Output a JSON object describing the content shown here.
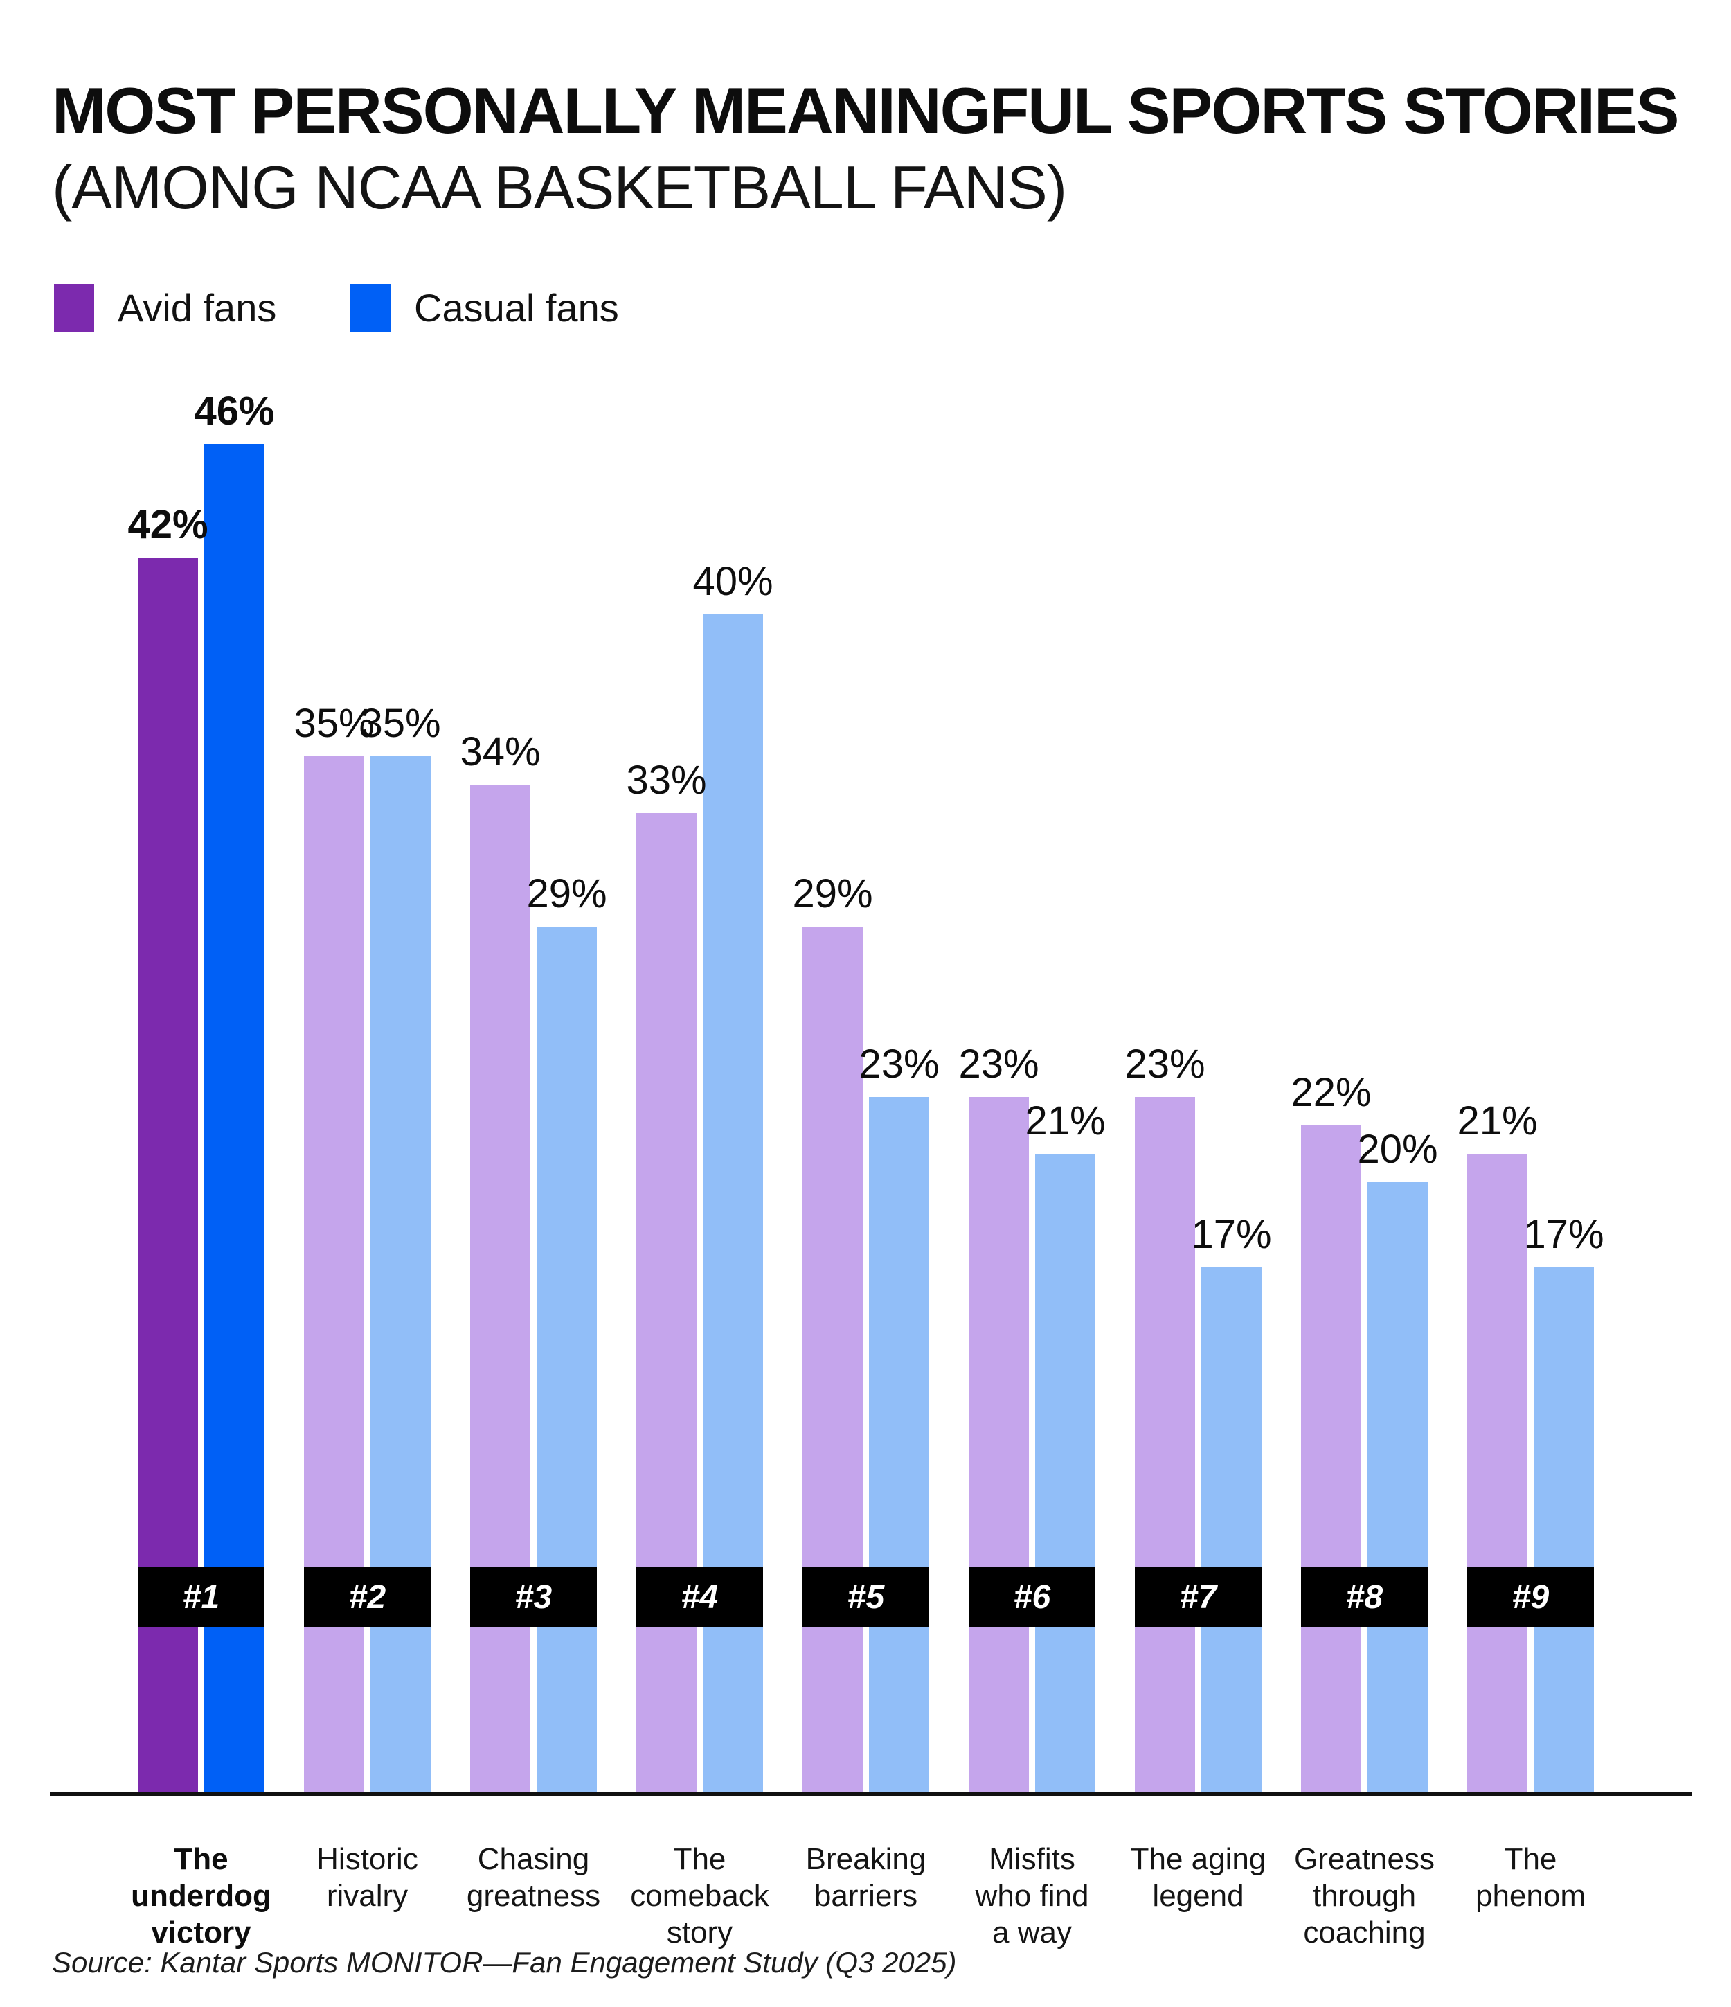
{
  "title": {
    "line1": "MOST PERSONALLY MEANINGFUL SPORTS STORIES",
    "line2": "(AMONG NCAA BASKETBALL FANS)"
  },
  "legend": {
    "items": [
      {
        "label": "Avid fans",
        "color": "#7C2AAE"
      },
      {
        "label": "Casual fans",
        "color": "#0060F6"
      }
    ]
  },
  "colors": {
    "avid": "#7C2AAE",
    "casual": "#0060F6",
    "avid_muted": "#C5A5EC",
    "casual_muted": "#91BEF8",
    "rank_badge_bg": "#000000",
    "rank_badge_text": "#FFFFFF",
    "axis": "#111111",
    "text": "#0D0D0D"
  },
  "chart_data": {
    "type": "bar",
    "title": "Most personally meaningful sports stories (among NCAA basketball fans)",
    "categories": [
      "The underdog victory",
      "Historic rivalry",
      "Chasing greatness",
      "The comeback story",
      "Breaking barriers",
      "Misfits who find a way",
      "The aging legend",
      "Greatness through coaching",
      "The phenom"
    ],
    "category_display": [
      "The\nunderdog\nvictory",
      "Historic\nrivalry",
      "Chasing\ngreatness",
      "The\ncomeback\nstory",
      "Breaking\nbarriers",
      "Misfits\nwho find\na way",
      "The aging\nlegend",
      "Greatness\nthrough\ncoaching",
      "The\nphenom"
    ],
    "series": [
      {
        "name": "Avid fans",
        "values": [
          42,
          35,
          34,
          33,
          29,
          23,
          23,
          22,
          21
        ]
      },
      {
        "name": "Casual fans",
        "values": [
          46,
          35,
          29,
          40,
          23,
          21,
          17,
          20,
          17
        ]
      }
    ],
    "value_labels": [
      [
        "42%",
        "46%"
      ],
      [
        "35%",
        "35%"
      ],
      [
        "34%",
        "29%"
      ],
      [
        "33%",
        "40%"
      ],
      [
        "29%",
        "23%"
      ],
      [
        "23%",
        "21%"
      ],
      [
        "23%",
        "17%"
      ],
      [
        "22%",
        "20%"
      ],
      [
        "21%",
        "17%"
      ]
    ],
    "ranks": [
      "#1",
      "#2",
      "#3",
      "#4",
      "#5",
      "#6",
      "#7",
      "#8",
      "#9"
    ],
    "highlighted_category": "The underdog victory",
    "value_suffix": "%",
    "ylim": [
      0,
      50
    ],
    "grid": false,
    "legend_position": "top-left"
  },
  "source": "Source: Kantar Sports MONITOR—Fan Engagement Study (Q3 2025)"
}
